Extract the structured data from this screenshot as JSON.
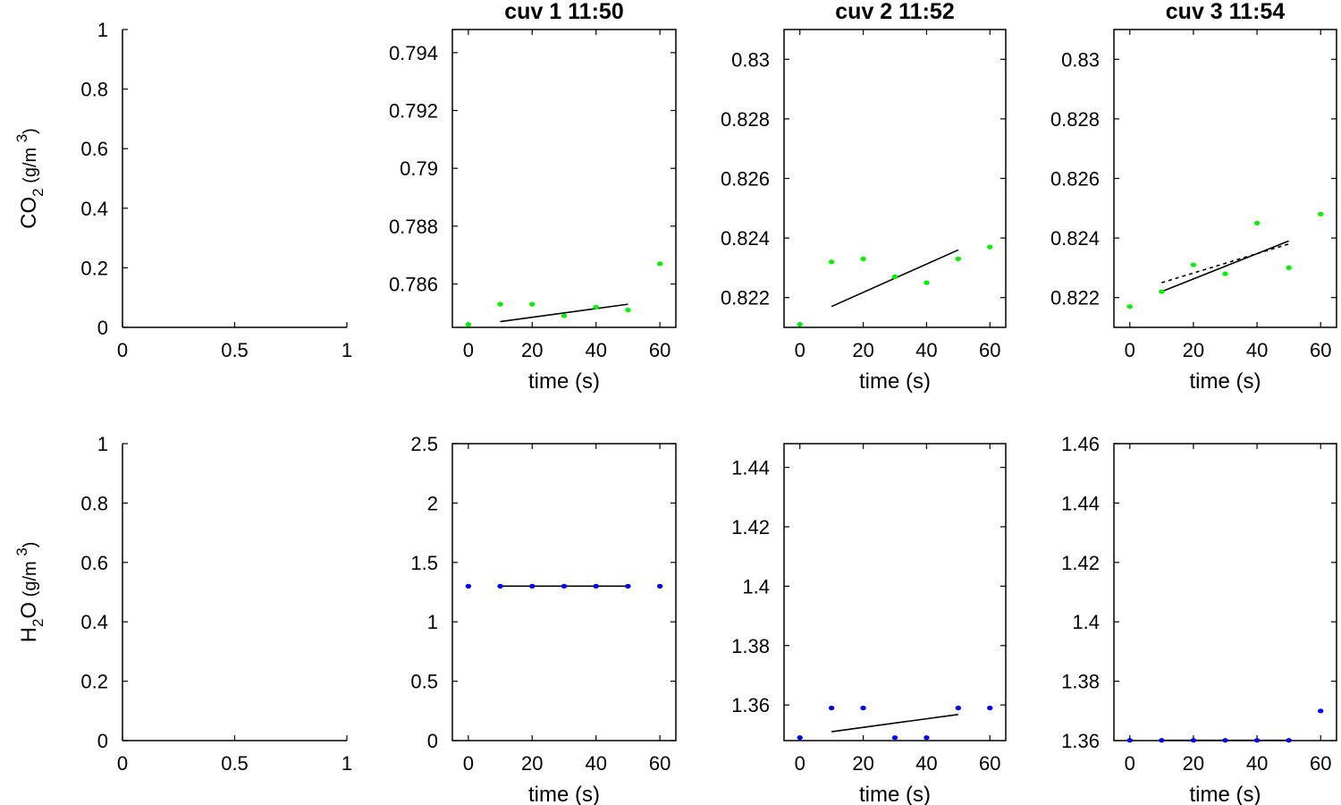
{
  "chart_data": [
    {
      "id": "co2-label-panel",
      "type": "scatter",
      "title": "",
      "xlabel": "",
      "ylabel_main": "CO",
      "ylabel_sub": "2",
      "ylabel_unit": " (g/m ",
      "ylabel_sup": "3",
      "ylabel_close": ")",
      "xlim": [
        0,
        1
      ],
      "ylim": [
        0,
        1
      ],
      "xticks": [
        0,
        0.5,
        1
      ],
      "xticklabels": [
        "0",
        "0.5",
        "1"
      ],
      "yticks": [
        0,
        0.2,
        0.4,
        0.6,
        0.8,
        1
      ],
      "yticklabels": [
        "0",
        "0.2",
        "0.4",
        "0.6",
        "0.8",
        "1"
      ],
      "points": {
        "x": [],
        "y": [],
        "color": "#00ee00"
      },
      "fit": null,
      "fit_dashed": null
    },
    {
      "id": "co2-cuv1",
      "type": "scatter",
      "title": "cuv 1 11:50",
      "xlabel": "time (s)",
      "ylabel": "",
      "xlim": [
        -5,
        65
      ],
      "ylim": [
        0.7845,
        0.7948
      ],
      "xticks": [
        0,
        20,
        40,
        60
      ],
      "xticklabels": [
        "0",
        "20",
        "40",
        "60"
      ],
      "yticks": [
        0.786,
        0.788,
        0.79,
        0.792,
        0.794
      ],
      "yticklabels": [
        "0.786",
        "0.788",
        "0.79",
        "0.792",
        "0.794"
      ],
      "points": {
        "x": [
          0,
          10,
          20,
          30,
          40,
          50,
          60
        ],
        "y": [
          0.7846,
          0.7853,
          0.7853,
          0.7849,
          0.7852,
          0.7851,
          0.7867
        ],
        "color": "#00ee00"
      },
      "fit": {
        "x": [
          10,
          50
        ],
        "y": [
          0.7847,
          0.7853
        ]
      },
      "fit_dashed": null
    },
    {
      "id": "co2-cuv2",
      "type": "scatter",
      "title": "cuv 2 11:52",
      "xlabel": "time (s)",
      "ylabel": "",
      "xlim": [
        -5,
        65
      ],
      "ylim": [
        0.821,
        0.831
      ],
      "xticks": [
        0,
        20,
        40,
        60
      ],
      "xticklabels": [
        "0",
        "20",
        "40",
        "60"
      ],
      "yticks": [
        0.822,
        0.824,
        0.826,
        0.828,
        0.83
      ],
      "yticklabels": [
        "0.822",
        "0.824",
        "0.826",
        "0.828",
        "0.83"
      ],
      "points": {
        "x": [
          0,
          10,
          20,
          30,
          40,
          50,
          60
        ],
        "y": [
          0.8211,
          0.8232,
          0.8233,
          0.8227,
          0.8225,
          0.8233,
          0.8237
        ],
        "color": "#00ee00"
      },
      "fit": {
        "x": [
          10,
          50
        ],
        "y": [
          0.8217,
          0.8236
        ]
      },
      "fit_dashed": null
    },
    {
      "id": "co2-cuv3",
      "type": "scatter",
      "title": "cuv 3 11:54",
      "xlabel": "time (s)",
      "ylabel": "",
      "xlim": [
        -5,
        65
      ],
      "ylim": [
        0.821,
        0.831
      ],
      "xticks": [
        0,
        20,
        40,
        60
      ],
      "xticklabels": [
        "0",
        "20",
        "40",
        "60"
      ],
      "yticks": [
        0.822,
        0.824,
        0.826,
        0.828,
        0.83
      ],
      "yticklabels": [
        "0.822",
        "0.824",
        "0.826",
        "0.828",
        "0.83"
      ],
      "points": {
        "x": [
          0,
          10,
          20,
          30,
          40,
          50,
          60
        ],
        "y": [
          0.8217,
          0.8222,
          0.8231,
          0.8228,
          0.8245,
          0.823,
          0.8248
        ],
        "color": "#00ee00"
      },
      "fit": {
        "x": [
          10,
          50
        ],
        "y": [
          0.8222,
          0.8239
        ]
      },
      "fit_dashed": {
        "x": [
          10,
          50
        ],
        "y": [
          0.8225,
          0.8238
        ]
      }
    },
    {
      "id": "h2o-label-panel",
      "type": "scatter",
      "title": "",
      "xlabel": "",
      "ylabel_main": "H",
      "ylabel_sub": "2",
      "ylabel_after": "O",
      "ylabel_unit": " (g/m ",
      "ylabel_sup": "3",
      "ylabel_close": ")",
      "xlim": [
        0,
        1
      ],
      "ylim": [
        0,
        1
      ],
      "xticks": [
        0,
        0.5,
        1
      ],
      "xticklabels": [
        "0",
        "0.5",
        "1"
      ],
      "yticks": [
        0,
        0.2,
        0.4,
        0.6,
        0.8,
        1
      ],
      "yticklabels": [
        "0",
        "0.2",
        "0.4",
        "0.6",
        "0.8",
        "1"
      ],
      "points": {
        "x": [],
        "y": [],
        "color": "#0000ee"
      },
      "fit": null,
      "fit_dashed": null
    },
    {
      "id": "h2o-cuv1",
      "type": "scatter",
      "title": "",
      "xlabel": "time (s)",
      "ylabel": "",
      "xlim": [
        -5,
        65
      ],
      "ylim": [
        0,
        2.5
      ],
      "xticks": [
        0,
        20,
        40,
        60
      ],
      "xticklabels": [
        "0",
        "20",
        "40",
        "60"
      ],
      "yticks": [
        0,
        0.5,
        1,
        1.5,
        2,
        2.5
      ],
      "yticklabels": [
        "0",
        "0.5",
        "1",
        "1.5",
        "2",
        "2.5"
      ],
      "points": {
        "x": [
          0,
          10,
          20,
          30,
          40,
          50,
          60
        ],
        "y": [
          1.3,
          1.3,
          1.3,
          1.3,
          1.3,
          1.3,
          1.3
        ],
        "color": "#0000ee"
      },
      "fit": {
        "x": [
          10,
          50
        ],
        "y": [
          1.3,
          1.3
        ]
      },
      "fit_dashed": null
    },
    {
      "id": "h2o-cuv2",
      "type": "scatter",
      "title": "",
      "xlabel": "time (s)",
      "ylabel": "",
      "xlim": [
        -5,
        65
      ],
      "ylim": [
        1.348,
        1.448
      ],
      "xticks": [
        0,
        20,
        40,
        60
      ],
      "xticklabels": [
        "0",
        "20",
        "40",
        "60"
      ],
      "yticks": [
        1.36,
        1.38,
        1.4,
        1.42,
        1.44
      ],
      "yticklabels": [
        "1.36",
        "1.38",
        "1.4",
        "1.42",
        "1.44"
      ],
      "points": {
        "x": [
          0,
          10,
          20,
          30,
          40,
          50,
          60
        ],
        "y": [
          1.349,
          1.359,
          1.359,
          1.349,
          1.349,
          1.359,
          1.359
        ],
        "color": "#0000ee"
      },
      "fit": {
        "x": [
          10,
          50
        ],
        "y": [
          1.351,
          1.3568
        ]
      },
      "fit_dashed": null
    },
    {
      "id": "h2o-cuv3",
      "type": "scatter",
      "title": "",
      "xlabel": "time (s)",
      "ylabel": "",
      "xlim": [
        -5,
        65
      ],
      "ylim": [
        1.36,
        1.46
      ],
      "xticks": [
        0,
        20,
        40,
        60
      ],
      "xticklabels": [
        "0",
        "20",
        "40",
        "60"
      ],
      "yticks": [
        1.36,
        1.38,
        1.4,
        1.42,
        1.44,
        1.46
      ],
      "yticklabels": [
        "1.36",
        "1.38",
        "1.4",
        "1.42",
        "1.44",
        "1.46"
      ],
      "points": {
        "x": [
          0,
          10,
          20,
          30,
          40,
          50,
          60
        ],
        "y": [
          1.3601,
          1.3601,
          1.3601,
          1.3601,
          1.3601,
          1.3601,
          1.37
        ],
        "color": "#0000ee"
      },
      "fit": {
        "x": [
          10,
          50
        ],
        "y": [
          1.3601,
          1.3601
        ]
      },
      "fit_dashed": null
    }
  ]
}
